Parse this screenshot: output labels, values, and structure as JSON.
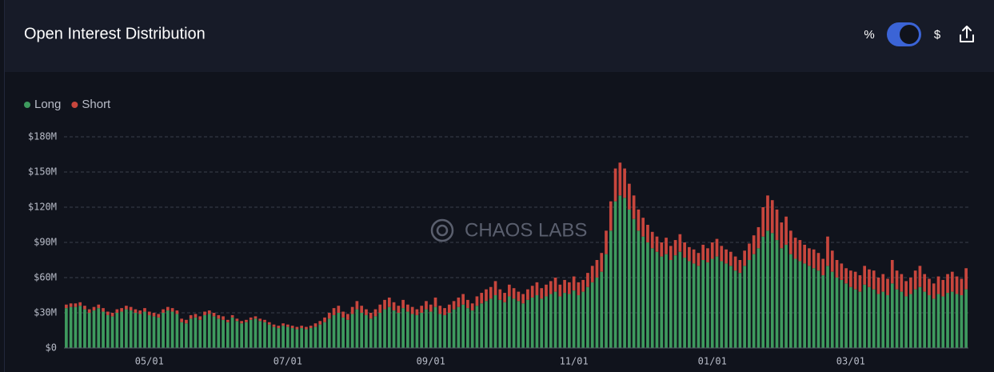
{
  "chart_data": {
    "type": "stacked_bar",
    "title": "Open Interest Distribution",
    "categories": [
      null,
      null,
      null,
      null,
      null,
      null,
      null,
      null,
      null,
      null,
      null,
      null,
      null,
      null,
      null,
      null,
      null,
      null,
      "05/01",
      null,
      null,
      null,
      null,
      null,
      null,
      null,
      null,
      null,
      null,
      null,
      null,
      null,
      null,
      null,
      null,
      null,
      null,
      null,
      null,
      null,
      null,
      null,
      null,
      null,
      null,
      null,
      null,
      null,
      "07/01",
      null,
      null,
      null,
      null,
      null,
      null,
      null,
      null,
      null,
      null,
      null,
      null,
      null,
      null,
      null,
      null,
      null,
      null,
      null,
      null,
      null,
      null,
      null,
      null,
      null,
      null,
      null,
      null,
      null,
      null,
      "09/01",
      null,
      null,
      null,
      null,
      null,
      null,
      null,
      null,
      null,
      null,
      null,
      null,
      null,
      null,
      null,
      null,
      null,
      null,
      null,
      null,
      null,
      null,
      null,
      null,
      null,
      null,
      null,
      null,
      null,
      null,
      "11/01",
      null,
      null,
      null,
      null,
      null,
      null,
      null,
      null,
      null,
      null,
      null,
      null,
      null,
      null,
      null,
      null,
      null,
      null,
      null,
      null,
      null,
      null,
      null,
      null,
      null,
      null,
      null,
      null,
      null,
      "01/01",
      null,
      null,
      null,
      null,
      null,
      null,
      null,
      null,
      null,
      null,
      null,
      null,
      null,
      null,
      null,
      null,
      null,
      null,
      null,
      null,
      null,
      null,
      null,
      null,
      null,
      null,
      null,
      null,
      null,
      "03/01",
      null,
      null,
      null,
      null,
      null,
      null,
      null,
      null,
      null,
      null,
      null,
      null,
      null,
      null,
      null,
      null,
      null,
      null,
      null,
      null,
      null,
      null,
      null,
      null,
      null
    ],
    "series": [
      {
        "name": "Long",
        "color": "#3e9a5e",
        "values": [
          34,
          35,
          35,
          36,
          33,
          30,
          32,
          34,
          31,
          28,
          27,
          30,
          31,
          33,
          32,
          30,
          29,
          31,
          28,
          27,
          26,
          30,
          32,
          31,
          29,
          22,
          21,
          25,
          26,
          24,
          28,
          29,
          27,
          25,
          24,
          22,
          26,
          23,
          21,
          22,
          24,
          25,
          23,
          22,
          20,
          18,
          17,
          19,
          18,
          17,
          16,
          17,
          16,
          17,
          18,
          20,
          22,
          25,
          28,
          30,
          26,
          24,
          29,
          33,
          30,
          28,
          25,
          27,
          30,
          33,
          35,
          32,
          30,
          34,
          31,
          29,
          28,
          30,
          33,
          31,
          35,
          29,
          28,
          30,
          33,
          35,
          37,
          34,
          32,
          36,
          38,
          40,
          42,
          45,
          41,
          39,
          44,
          42,
          40,
          38,
          41,
          43,
          45,
          42,
          44,
          46,
          48,
          44,
          47,
          46,
          49,
          45,
          48,
          52,
          56,
          60,
          65,
          80,
          100,
          125,
          130,
          128,
          118,
          110,
          100,
          95,
          90,
          85,
          82,
          78,
          80,
          75,
          79,
          82,
          77,
          74,
          72,
          70,
          75,
          73,
          76,
          78,
          74,
          72,
          70,
          66,
          64,
          70,
          75,
          80,
          85,
          95,
          100,
          98,
          92,
          85,
          88,
          80,
          76,
          74,
          72,
          70,
          68,
          66,
          62,
          70,
          65,
          60,
          58,
          55,
          52,
          50,
          48,
          54,
          52,
          50,
          46,
          48,
          45,
          55,
          50,
          48,
          44,
          46,
          50,
          52,
          48,
          45,
          42,
          46,
          44,
          47,
          48,
          46,
          45,
          50
        ]
      },
      {
        "name": "Short",
        "color": "#c8463d",
        "values": [
          3,
          3,
          3,
          3,
          3,
          3,
          3,
          3,
          3,
          3,
          3,
          3,
          3,
          3,
          3,
          3,
          3,
          3,
          3,
          3,
          3,
          3,
          3,
          3,
          3,
          3,
          3,
          3,
          3,
          3,
          3,
          3,
          3,
          3,
          3,
          2,
          2,
          2,
          2,
          2,
          2,
          2,
          2,
          2,
          2,
          2,
          2,
          2,
          2,
          2,
          2,
          2,
          2,
          2,
          3,
          3,
          4,
          5,
          6,
          6,
          5,
          5,
          6,
          7,
          6,
          5,
          5,
          6,
          7,
          8,
          8,
          7,
          6,
          7,
          6,
          6,
          5,
          6,
          7,
          6,
          8,
          7,
          6,
          7,
          7,
          8,
          9,
          7,
          6,
          8,
          9,
          10,
          10,
          12,
          9,
          8,
          10,
          9,
          8,
          8,
          9,
          10,
          11,
          9,
          10,
          11,
          12,
          10,
          11,
          10,
          12,
          11,
          10,
          12,
          14,
          15,
          16,
          20,
          25,
          28,
          28,
          25,
          22,
          20,
          18,
          16,
          15,
          14,
          13,
          12,
          14,
          12,
          13,
          15,
          13,
          12,
          12,
          11,
          13,
          12,
          14,
          15,
          13,
          12,
          12,
          12,
          11,
          13,
          14,
          16,
          18,
          25,
          30,
          28,
          26,
          22,
          24,
          20,
          18,
          18,
          16,
          15,
          16,
          15,
          14,
          25,
          18,
          15,
          14,
          13,
          14,
          15,
          14,
          16,
          15,
          16,
          14,
          15,
          14,
          20,
          16,
          15,
          13,
          14,
          16,
          18,
          15,
          14,
          13,
          15,
          14,
          16,
          17,
          15,
          14,
          18
        ]
      }
    ],
    "ylim": [
      0,
      180
    ],
    "yticks": [
      {
        "value": 0,
        "label": "$0"
      },
      {
        "value": 30,
        "label": "$30M"
      },
      {
        "value": 60,
        "label": "$60M"
      },
      {
        "value": 90,
        "label": "$90M"
      },
      {
        "value": 120,
        "label": "$120M"
      },
      {
        "value": 150,
        "label": "$150M"
      },
      {
        "value": 180,
        "label": "$180M"
      }
    ],
    "grid": true,
    "legend": "top-left"
  },
  "controls": {
    "percent": "%",
    "dollar": "$"
  },
  "watermark": "CHAOS LABS"
}
